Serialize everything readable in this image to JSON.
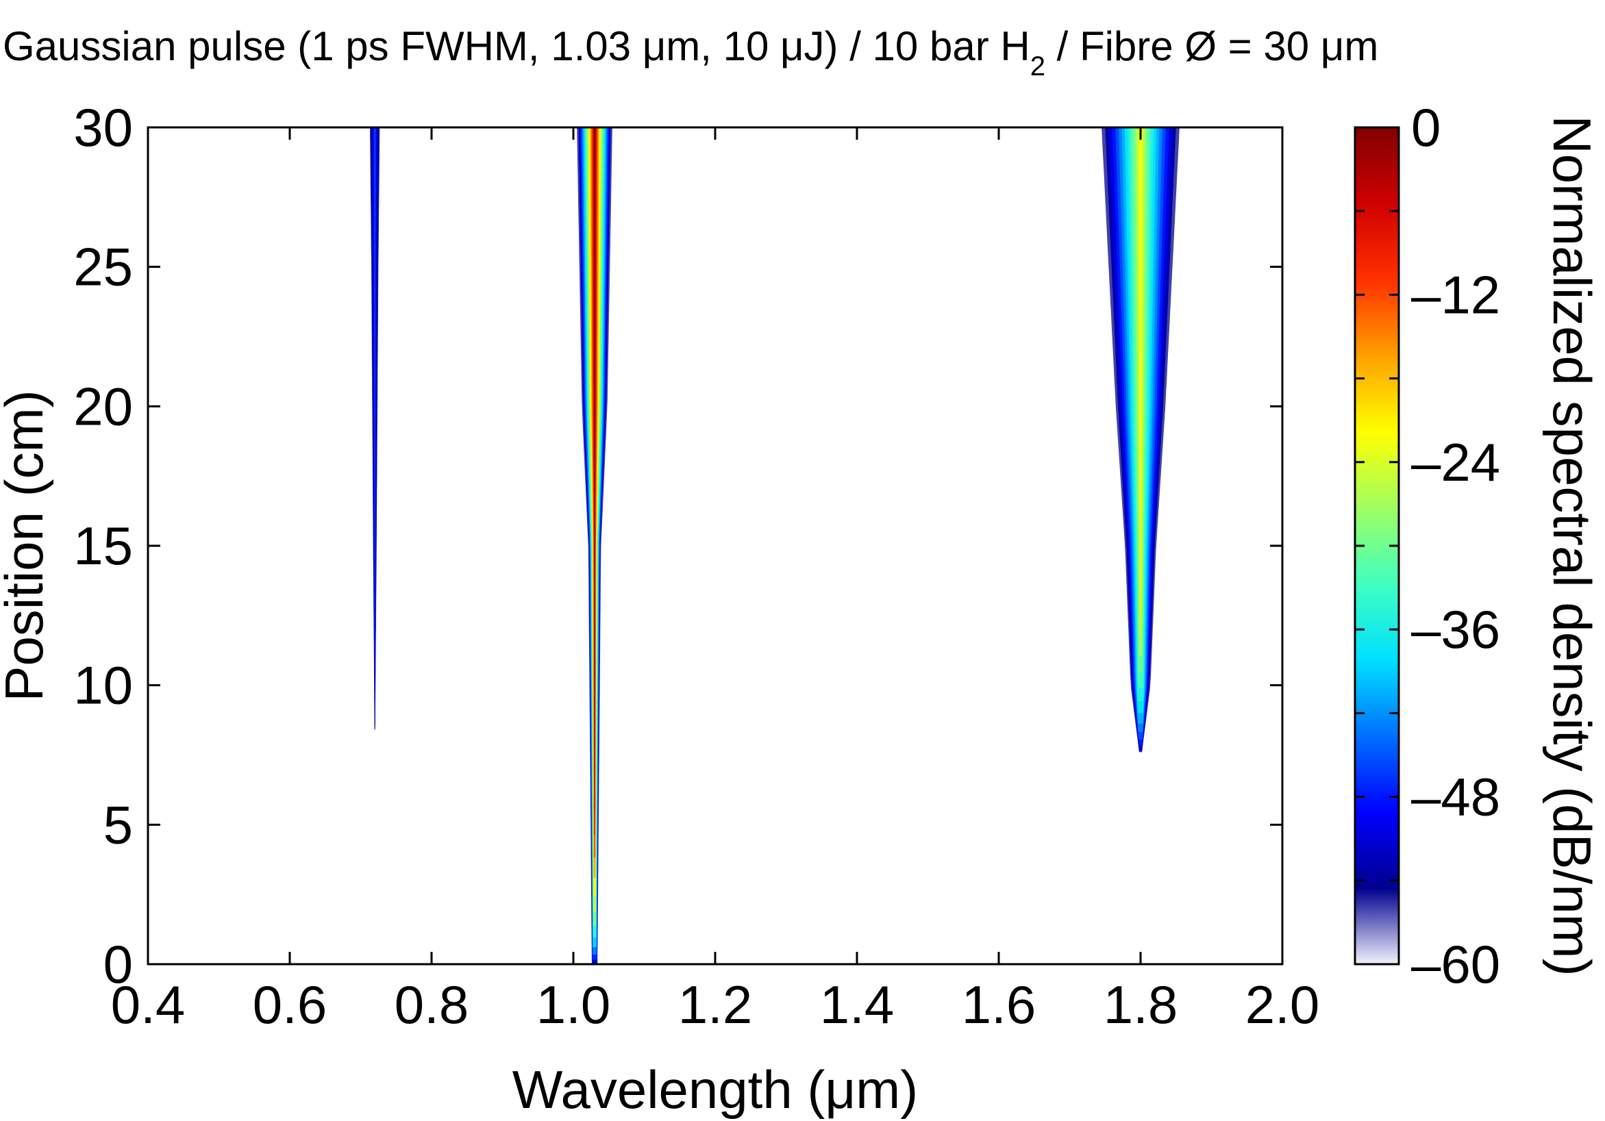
{
  "chart_data": {
    "type": "heatmap",
    "title": {
      "prefix": "Gaussian pulse (1 ps FWHM, 1.03 μm, 10 μJ) / 10 bar H",
      "subscript": "2",
      "suffix": "  / Fibre Ø = 30 μm"
    },
    "xlabel": "Wavelength (μm)",
    "ylabel": "Position (cm)",
    "colorbar_label": "Normalized spectral density (dB/nm)",
    "xlim": [
      0.4,
      2.0
    ],
    "ylim": [
      0,
      30
    ],
    "clim": [
      -60,
      0
    ],
    "x_ticks": [
      "0.4",
      "0.6",
      "0.8",
      "1.0",
      "1.2",
      "1.4",
      "1.6",
      "1.8",
      "2.0"
    ],
    "y_ticks": [
      "0",
      "5",
      "10",
      "15",
      "20",
      "25",
      "30"
    ],
    "colorbar_ticks": [
      "0",
      "–12",
      "–24",
      "–36",
      "–48",
      "–60"
    ],
    "colormap": [
      "#f3f3fb",
      "#00008f",
      "#0000ff",
      "#0070ff",
      "#00e0ff",
      "#40ffc0",
      "#a0ff60",
      "#ffff00",
      "#ffa000",
      "#ff3000",
      "#d00000",
      "#800000"
    ],
    "grid": false,
    "lines": [
      {
        "center_um": 1.03,
        "start_cm": 0,
        "peak_db": 0,
        "profile": [
          {
            "z": 0,
            "halfwidth_um": 0.004
          },
          {
            "z": 15,
            "halfwidth_um": 0.009
          },
          {
            "z": 20,
            "halfwidth_um": 0.018
          },
          {
            "z": 30,
            "halfwidth_um": 0.025
          }
        ]
      },
      {
        "center_um": 1.8,
        "start_cm": 7.6,
        "peak_db": -22,
        "profile": [
          {
            "z": 7.6,
            "halfwidth_um": 0.002
          },
          {
            "z": 10,
            "halfwidth_um": 0.014
          },
          {
            "z": 15,
            "halfwidth_um": 0.022
          },
          {
            "z": 20,
            "halfwidth_um": 0.035
          },
          {
            "z": 30,
            "halfwidth_um": 0.055
          }
        ]
      },
      {
        "center_um": 0.72,
        "start_cm": 8.4,
        "peak_db": -45,
        "profile": [
          {
            "z": 8.4,
            "halfwidth_um": 0.0005
          },
          {
            "z": 15,
            "halfwidth_um": 0.0025
          },
          {
            "z": 25,
            "halfwidth_um": 0.005
          },
          {
            "z": 30,
            "halfwidth_um": 0.007
          }
        ]
      }
    ]
  }
}
